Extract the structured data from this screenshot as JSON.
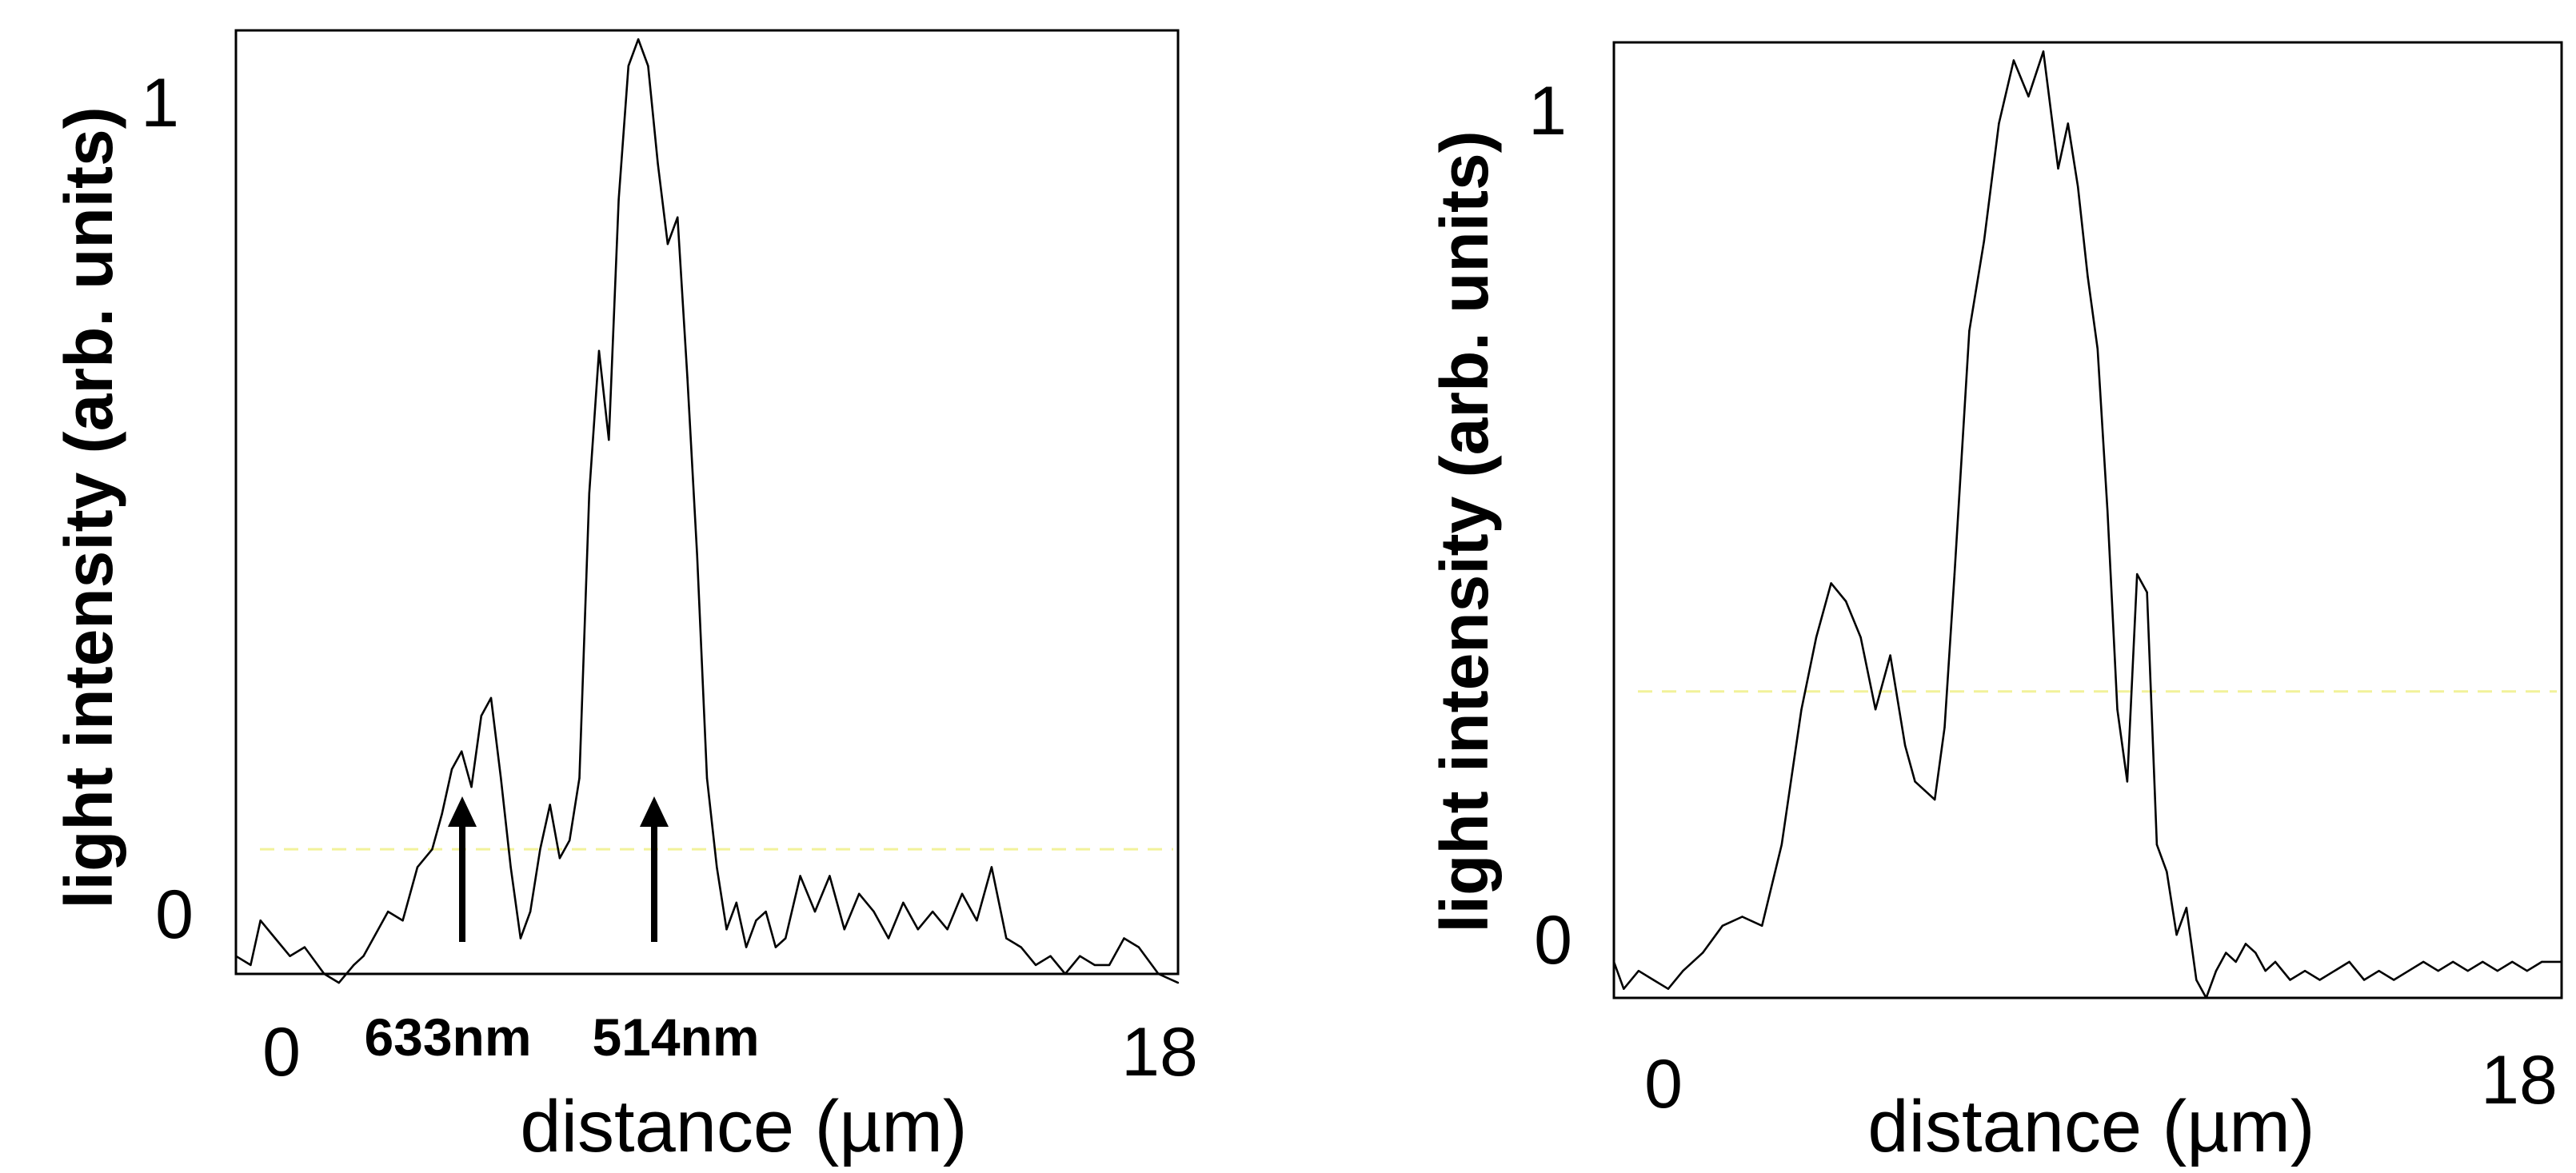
{
  "chart_data": [
    {
      "type": "line",
      "xlabel": "distance (µm)",
      "ylabel": "light intensity (arb. units)",
      "x_ticks": [
        "0",
        "18"
      ],
      "y_ticks": [
        "0",
        "1"
      ],
      "xlim": [
        -0.8,
        18.4
      ],
      "ylim": [
        -0.02,
        1.04
      ],
      "grid": false,
      "dashed_reference_y": 0.12,
      "annotations": [
        {
          "text": "633nm",
          "x": 4.3
        },
        {
          "text": "514nm",
          "x": 8.2
        }
      ],
      "series": [
        {
          "x": [
            -0.8,
            -0.5,
            -0.3,
            0.0,
            0.3,
            0.6,
            1.0,
            1.3,
            1.6,
            1.8,
            2.0,
            2.3,
            2.6,
            2.9,
            3.2,
            3.4,
            3.6,
            3.8,
            4.0,
            4.2,
            4.4,
            4.6,
            4.8,
            5.0,
            5.2,
            5.4,
            5.6,
            5.8,
            6.0,
            6.2,
            6.4,
            6.6,
            6.8,
            7.0,
            7.2,
            7.4,
            7.6,
            7.8,
            8.0,
            8.2,
            8.4,
            8.6,
            8.8,
            9.0,
            9.2,
            9.4,
            9.6,
            9.8,
            10.0,
            10.2,
            10.4,
            10.7,
            11.0,
            11.3,
            11.6,
            11.9,
            12.2,
            12.5,
            12.8,
            13.1,
            13.4,
            13.7,
            14.0,
            14.3,
            14.6,
            14.9,
            15.2,
            15.5,
            15.8,
            16.1,
            16.4,
            16.7,
            17.0,
            17.3,
            17.6,
            18.0,
            18.4
          ],
          "y": [
            0.0,
            -0.01,
            0.04,
            0.02,
            0.0,
            0.01,
            -0.02,
            -0.03,
            -0.01,
            0.0,
            0.02,
            0.05,
            0.04,
            0.1,
            0.12,
            0.16,
            0.21,
            0.23,
            0.19,
            0.27,
            0.29,
            0.2,
            0.1,
            0.02,
            0.05,
            0.12,
            0.17,
            0.11,
            0.13,
            0.2,
            0.52,
            0.68,
            0.58,
            0.85,
            1.0,
            1.03,
            1.0,
            0.89,
            0.8,
            0.83,
            0.65,
            0.45,
            0.2,
            0.1,
            0.03,
            0.06,
            0.01,
            0.04,
            0.05,
            0.01,
            0.02,
            0.09,
            0.05,
            0.09,
            0.03,
            0.07,
            0.05,
            0.02,
            0.06,
            0.03,
            0.05,
            0.03,
            0.07,
            0.04,
            0.1,
            0.02,
            0.01,
            -0.01,
            0.0,
            -0.02,
            0.0,
            -0.01,
            -0.01,
            0.02,
            0.01,
            -0.02,
            -0.03
          ]
        }
      ]
    },
    {
      "type": "line",
      "xlabel": "distance (µm)",
      "ylabel": "light intensity (arb. units)",
      "x_ticks": [
        "0",
        "18"
      ],
      "y_ticks": [
        "0",
        "1"
      ],
      "xlim": [
        -0.8,
        18.4
      ],
      "ylim": [
        -0.02,
        1.04
      ],
      "grid": false,
      "dashed_reference_y": 0.32,
      "series": [
        {
          "x": [
            -0.8,
            -0.6,
            -0.3,
            0.0,
            0.3,
            0.6,
            1.0,
            1.4,
            1.8,
            2.2,
            2.6,
            3.0,
            3.3,
            3.6,
            3.9,
            4.2,
            4.5,
            4.8,
            5.1,
            5.3,
            5.5,
            5.7,
            5.9,
            6.1,
            6.4,
            6.7,
            7.0,
            7.3,
            7.6,
            7.9,
            8.2,
            8.4,
            8.6,
            8.8,
            9.0,
            9.2,
            9.4,
            9.6,
            9.8,
            10.0,
            10.2,
            10.4,
            10.6,
            10.8,
            11.0,
            11.2,
            11.4,
            11.6,
            11.8,
            12.0,
            12.2,
            12.4,
            12.6,
            12.9,
            13.2,
            13.5,
            13.8,
            14.1,
            14.4,
            14.7,
            15.0,
            15.3,
            15.6,
            15.9,
            16.2,
            16.5,
            16.8,
            17.1,
            17.4,
            17.7,
            18.0,
            18.4
          ],
          "y": [
            0.02,
            -0.01,
            0.01,
            0.0,
            -0.01,
            0.01,
            0.03,
            0.06,
            0.07,
            0.06,
            0.15,
            0.3,
            0.38,
            0.44,
            0.42,
            0.38,
            0.3,
            0.36,
            0.26,
            0.22,
            0.21,
            0.2,
            0.28,
            0.45,
            0.72,
            0.82,
            0.95,
            1.02,
            0.98,
            1.03,
            0.9,
            0.95,
            0.88,
            0.78,
            0.7,
            0.52,
            0.3,
            0.22,
            0.45,
            0.43,
            0.15,
            0.12,
            0.05,
            0.08,
            0.0,
            -0.02,
            0.01,
            0.03,
            0.02,
            0.04,
            0.03,
            0.01,
            0.02,
            0.0,
            0.01,
            0.0,
            0.01,
            0.02,
            0.0,
            0.01,
            0.0,
            0.01,
            0.02,
            0.01,
            0.02,
            0.01,
            0.02,
            0.01,
            0.02,
            0.01,
            0.02,
            0.02
          ]
        }
      ]
    }
  ]
}
